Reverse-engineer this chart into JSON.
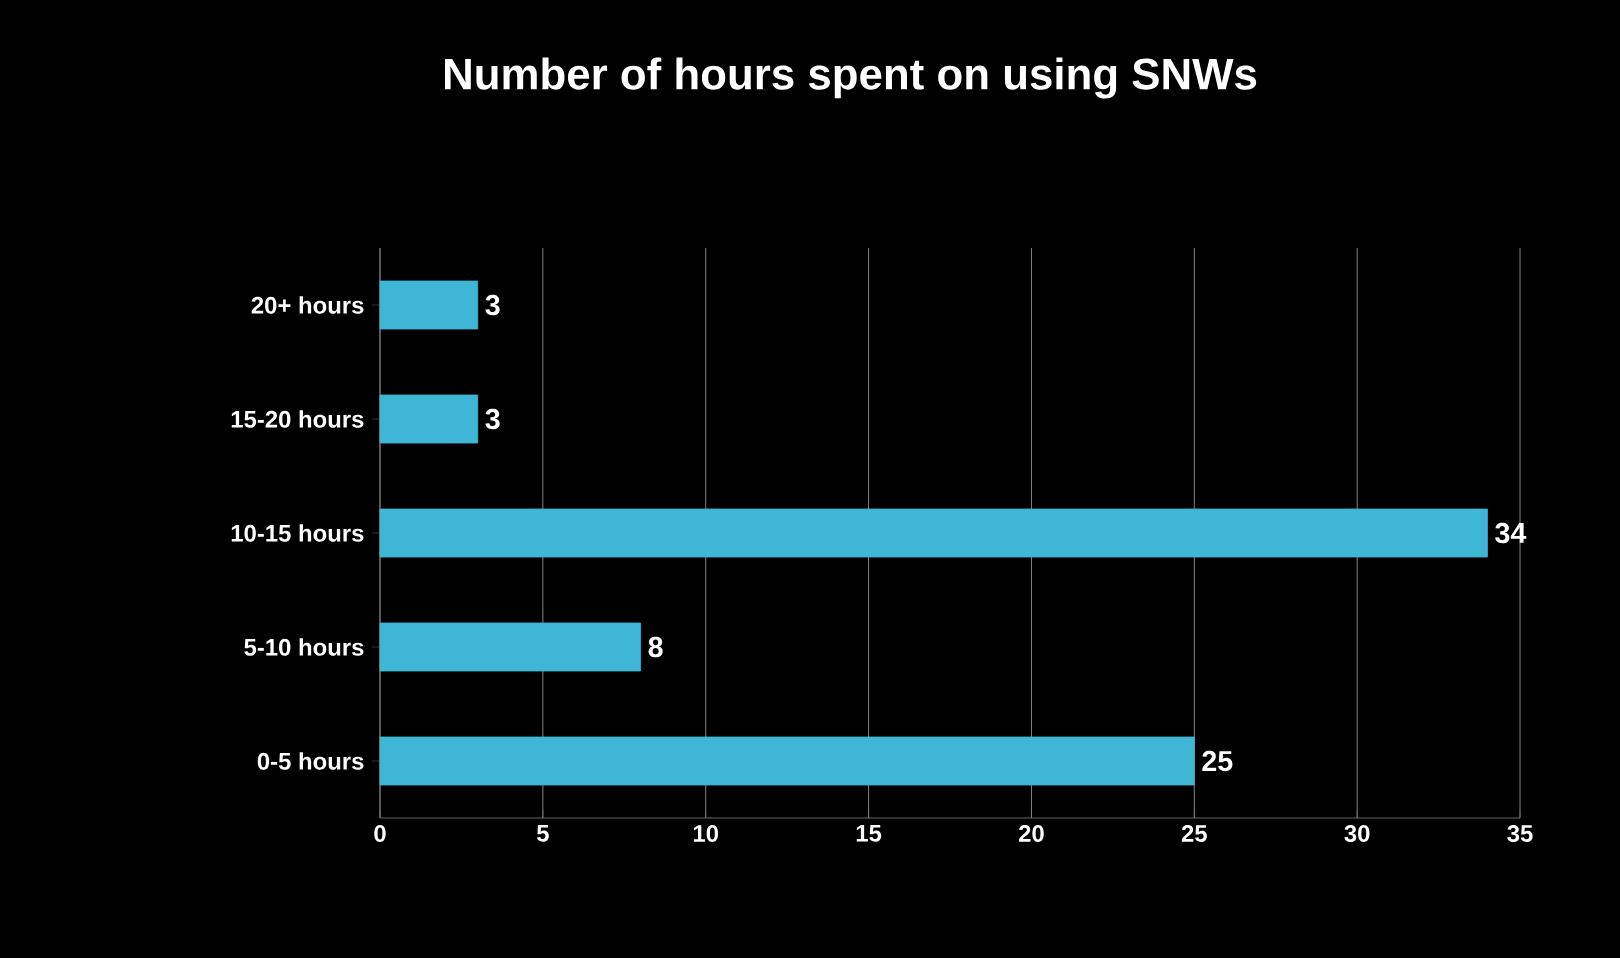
{
  "chart_data": {
    "type": "bar",
    "orientation": "horizontal",
    "title": "Number of hours spent on using SNWs",
    "categories": [
      "20+ hours",
      "15-20 hours",
      "10-15 hours",
      "5-10 hours",
      "0-5 hours"
    ],
    "values": [
      3,
      3,
      34,
      8,
      25
    ],
    "color": "#3fb6d6",
    "xlim": [
      0,
      35
    ],
    "xticks": [
      0,
      5,
      10,
      15,
      20,
      25,
      30,
      35
    ],
    "grid": "x",
    "data_labels": true
  }
}
